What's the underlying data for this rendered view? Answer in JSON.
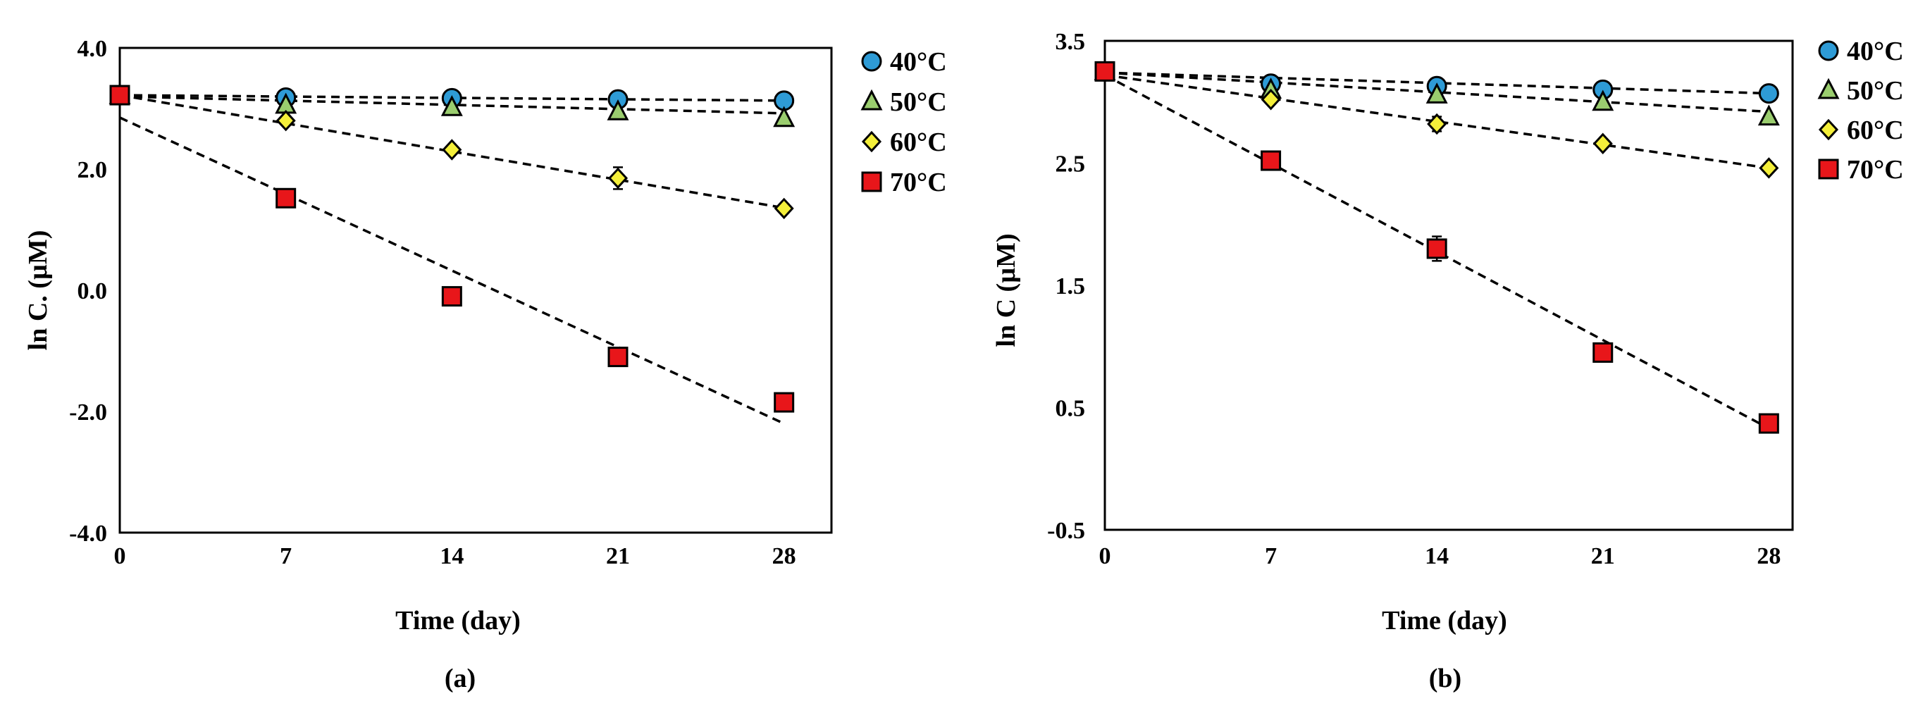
{
  "chart_data": [
    {
      "type": "scatter",
      "panel_label": "(a)",
      "xlabel": "Time (day)",
      "ylabel": "ln C. (µM)",
      "x_ticks": [
        "0",
        "7",
        "14",
        "21",
        "28"
      ],
      "y_ticks": [
        "-4.0",
        "-2.0",
        "0.0",
        "2.0",
        "4.0"
      ],
      "xlim": [
        0,
        30
      ],
      "ylim": [
        -4.0,
        4.0
      ],
      "legend_position": "right",
      "series": [
        {
          "name": "40°C",
          "marker": "circle",
          "color": "#2e9bd6",
          "x": [
            0,
            7,
            14,
            21,
            28
          ],
          "y": [
            3.22,
            3.18,
            3.17,
            3.15,
            3.13
          ],
          "err": [
            0,
            0,
            0,
            0,
            0
          ],
          "fit": {
            "x": [
              0,
              28
            ],
            "y": [
              3.22,
              3.13
            ]
          }
        },
        {
          "name": "50°C",
          "marker": "triangle",
          "color": "#9acd6e",
          "x": [
            0,
            7,
            14,
            21,
            28
          ],
          "y": [
            3.22,
            3.06,
            3.02,
            2.95,
            2.84
          ],
          "err": [
            0,
            0,
            0,
            0,
            0
          ],
          "fit": {
            "x": [
              0,
              28
            ],
            "y": [
              3.2,
              2.92
            ]
          }
        },
        {
          "name": "60°C",
          "marker": "diamond",
          "color": "#f4ef3a",
          "x": [
            0,
            7,
            14,
            21,
            28
          ],
          "y": [
            3.22,
            2.8,
            2.32,
            1.85,
            1.35
          ],
          "err": [
            0,
            0,
            0,
            0.18,
            0
          ],
          "fit": {
            "x": [
              0,
              28
            ],
            "y": [
              3.22,
              1.36
            ]
          }
        },
        {
          "name": "70°C",
          "marker": "square",
          "color": "#e8161a",
          "x": [
            0,
            7,
            14,
            21,
            28
          ],
          "y": [
            3.22,
            1.52,
            -0.1,
            -1.1,
            -1.85
          ],
          "err": [
            0,
            0,
            0,
            0,
            0
          ],
          "fit": {
            "x": [
              0,
              28
            ],
            "y": [
              2.85,
              -2.2
            ]
          }
        }
      ]
    },
    {
      "type": "scatter",
      "panel_label": "(b)",
      "xlabel": "Time (day)",
      "ylabel": "ln C (µM)",
      "x_ticks": [
        "0",
        "7",
        "14",
        "21",
        "28"
      ],
      "y_ticks": [
        "-0.5",
        "0.5",
        "1.5",
        "2.5",
        "3.5"
      ],
      "xlim": [
        0,
        29
      ],
      "ylim": [
        -0.5,
        3.5
      ],
      "legend_position": "right",
      "series": [
        {
          "name": "40°C",
          "marker": "circle",
          "color": "#2e9bd6",
          "x": [
            0,
            7,
            14,
            21,
            28
          ],
          "y": [
            3.25,
            3.15,
            3.13,
            3.1,
            3.07
          ],
          "err": [
            0,
            0,
            0,
            0,
            0
          ],
          "fit": {
            "x": [
              0,
              28
            ],
            "y": [
              3.24,
              3.07
            ]
          }
        },
        {
          "name": "50°C",
          "marker": "triangle",
          "color": "#9acd6e",
          "x": [
            0,
            7,
            14,
            21,
            28
          ],
          "y": [
            3.25,
            3.1,
            3.06,
            3.0,
            2.88
          ],
          "err": [
            0,
            0,
            0,
            0,
            0
          ],
          "fit": {
            "x": [
              0,
              28
            ],
            "y": [
              3.24,
              2.92
            ]
          }
        },
        {
          "name": "60°C",
          "marker": "diamond",
          "color": "#f4ef3a",
          "x": [
            0,
            7,
            14,
            21,
            28
          ],
          "y": [
            3.25,
            3.02,
            2.82,
            2.66,
            2.46
          ],
          "err": [
            0,
            0,
            0.06,
            0,
            0
          ],
          "fit": {
            "x": [
              0,
              28
            ],
            "y": [
              3.22,
              2.46
            ]
          }
        },
        {
          "name": "70°C",
          "marker": "square",
          "color": "#e8161a",
          "x": [
            0,
            7,
            14,
            21,
            28
          ],
          "y": [
            3.25,
            2.52,
            1.8,
            0.95,
            0.37
          ],
          "err": [
            0,
            0,
            0.1,
            0,
            0
          ],
          "fit": {
            "x": [
              0,
              28
            ],
            "y": [
              3.22,
              0.33
            ]
          }
        }
      ]
    }
  ]
}
